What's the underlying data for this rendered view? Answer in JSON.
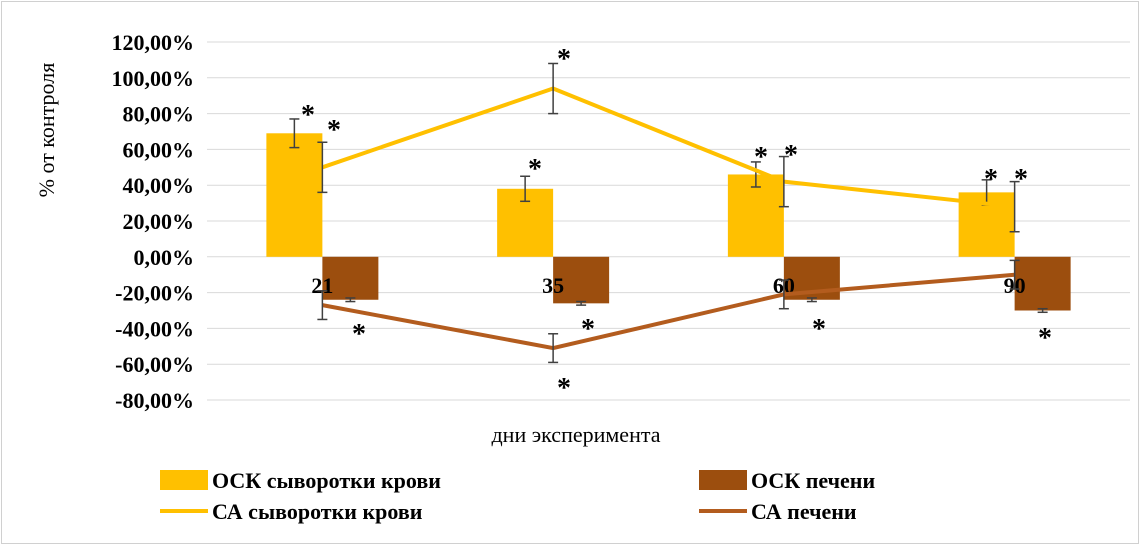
{
  "chart_data": {
    "type": "bar",
    "categories": [
      "21",
      "35",
      "60",
      "90"
    ],
    "xlabel": "дни эксперимента",
    "ylabel": "% от контроля",
    "ylim": [
      -80,
      120
    ],
    "yticks": [
      "120,00%",
      "100,00%",
      "80,00%",
      "60,00%",
      "40,00%",
      "20,00%",
      "0,00%",
      "-20,00%",
      "-40,00%",
      "-60,00%",
      "-80,00%"
    ],
    "grid": true,
    "legend_position": "bottom",
    "significance_marker": "*",
    "series": [
      {
        "name": "ОСК сыворотки крови",
        "kind": "bar",
        "color": "#FFC000",
        "values": [
          69,
          38,
          46,
          36
        ],
        "errors": [
          8,
          7,
          7,
          7
        ]
      },
      {
        "name": "ОСК печени",
        "kind": "bar",
        "color": "#9C4E0E",
        "values": [
          -24,
          -26,
          -24,
          -30
        ],
        "errors": [
          1,
          1,
          1,
          1
        ]
      },
      {
        "name": "СА сыворотки крови",
        "kind": "line",
        "color": "#FFC000",
        "values": [
          50,
          94,
          42,
          28
        ],
        "errors": [
          14,
          14,
          14,
          14
        ]
      },
      {
        "name": "СА печени",
        "kind": "line",
        "color": "#B35C1E",
        "values": [
          -27,
          -51,
          -21,
          -10
        ],
        "errors": [
          8,
          8,
          8,
          8
        ]
      }
    ]
  }
}
